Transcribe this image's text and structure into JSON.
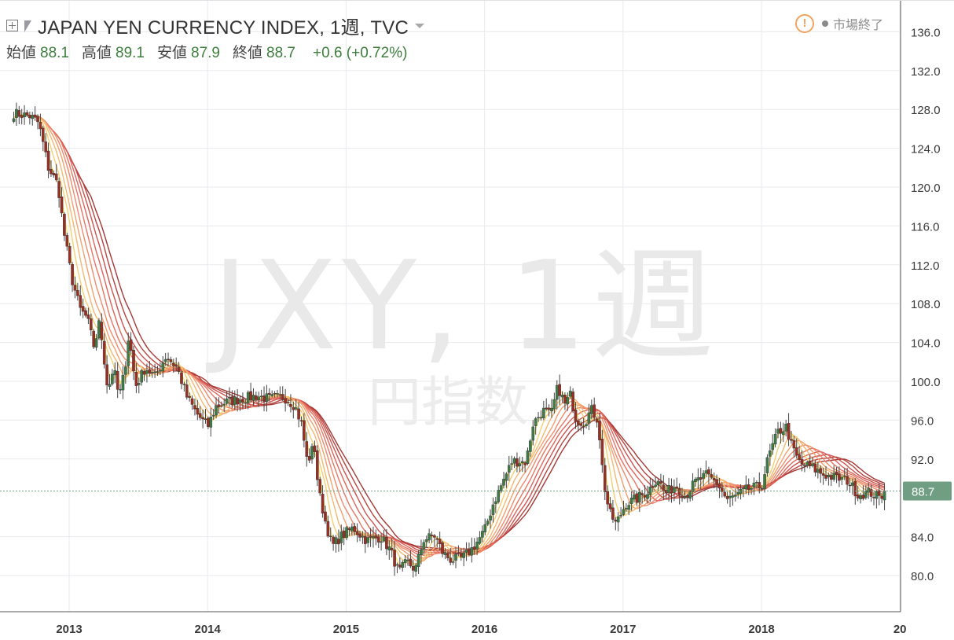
{
  "header": {
    "title": "JAPAN YEN CURRENCY INDEX, 1週, TVC",
    "ohlc": [
      {
        "label": "始値",
        "value": "88.1"
      },
      {
        "label": "高値",
        "value": "89.1"
      },
      {
        "label": "安値",
        "value": "87.9"
      },
      {
        "label": "終値",
        "value": "88.7"
      }
    ],
    "change": "+0.6 (+0.72%)",
    "warning_symbol": "!",
    "market_status": "市場終了"
  },
  "watermark": {
    "symbol": "JXY, 1週",
    "name": "円指数"
  },
  "colors": {
    "up": "#3f7b48",
    "down": "#9a2f25",
    "wick": "#444444",
    "grid": "#e8eaee",
    "axis_text": "#3a3a3a",
    "price_tag": "#6f9e83",
    "ma_ribbon": [
      "#f5e66c",
      "#f4cc6a",
      "#f3b468",
      "#f29c67",
      "#ee8464",
      "#e66f5c",
      "#da5d52",
      "#c94a45",
      "#b23a36",
      "#9e2e2a"
    ]
  },
  "icons": {
    "expand": "plus-square-icon",
    "symbol": "flag-icon",
    "dropdown": "caret-down-icon",
    "warning": "warning-circle-icon",
    "status": "status-dot-icon"
  },
  "chart_data": {
    "type": "candlestick",
    "title": "JAPAN YEN CURRENCY INDEX, 1週, TVC",
    "x_ticks": [
      "2013",
      "2014",
      "2015",
      "2016",
      "2017",
      "2018",
      "20"
    ],
    "y_ticks": [
      "136.0",
      "132.0",
      "128.0",
      "124.0",
      "120.0",
      "116.0",
      "112.0",
      "108.0",
      "104.0",
      "100.0",
      "96.0",
      "92.0",
      "88.7",
      "84.0",
      "80.0"
    ],
    "ylim": [
      76.5,
      138.5
    ],
    "last_price": 88.7,
    "close_path": [
      [
        2012.6,
        127.6
      ],
      [
        2012.72,
        127.3
      ],
      [
        2012.78,
        126.6
      ],
      [
        2012.85,
        122.0
      ],
      [
        2012.92,
        120.2
      ],
      [
        2012.96,
        115.5
      ],
      [
        2013.02,
        110.5
      ],
      [
        2013.08,
        107.4
      ],
      [
        2013.13,
        106.5
      ],
      [
        2013.18,
        103.5
      ],
      [
        2013.22,
        106.2
      ],
      [
        2013.28,
        99.0
      ],
      [
        2013.32,
        101.5
      ],
      [
        2013.36,
        98.3
      ],
      [
        2013.4,
        101.0
      ],
      [
        2013.43,
        104.8
      ],
      [
        2013.48,
        99.5
      ],
      [
        2013.55,
        101.4
      ],
      [
        2013.62,
        100.5
      ],
      [
        2013.7,
        102.6
      ],
      [
        2013.78,
        101.4
      ],
      [
        2013.85,
        98.4
      ],
      [
        2013.92,
        96.7
      ],
      [
        2014.0,
        95.3
      ],
      [
        2014.06,
        97.4
      ],
      [
        2014.14,
        97.9
      ],
      [
        2014.25,
        98.2
      ],
      [
        2014.35,
        98.5
      ],
      [
        2014.45,
        98.2
      ],
      [
        2014.55,
        98.4
      ],
      [
        2014.63,
        97.5
      ],
      [
        2014.68,
        95.5
      ],
      [
        2014.72,
        91.6
      ],
      [
        2014.77,
        93.5
      ],
      [
        2014.8,
        88.8
      ],
      [
        2014.85,
        85.6
      ],
      [
        2014.9,
        83.0
      ],
      [
        2014.96,
        84.0
      ],
      [
        2015.05,
        84.9
      ],
      [
        2015.15,
        83.6
      ],
      [
        2015.25,
        84.0
      ],
      [
        2015.32,
        82.6
      ],
      [
        2015.38,
        80.3
      ],
      [
        2015.44,
        81.4
      ],
      [
        2015.5,
        80.6
      ],
      [
        2015.56,
        83.7
      ],
      [
        2015.64,
        84.1
      ],
      [
        2015.7,
        82.3
      ],
      [
        2015.76,
        81.6
      ],
      [
        2015.84,
        81.8
      ],
      [
        2015.92,
        82.9
      ],
      [
        2016.0,
        84.6
      ],
      [
        2016.06,
        87.3
      ],
      [
        2016.13,
        89.6
      ],
      [
        2016.2,
        91.8
      ],
      [
        2016.3,
        91.7
      ],
      [
        2016.35,
        95.6
      ],
      [
        2016.42,
        97.0
      ],
      [
        2016.48,
        96.5
      ],
      [
        2016.53,
        99.5
      ],
      [
        2016.58,
        97.6
      ],
      [
        2016.62,
        98.6
      ],
      [
        2016.66,
        96.1
      ],
      [
        2016.72,
        95.7
      ],
      [
        2016.77,
        97.1
      ],
      [
        2016.82,
        96.0
      ],
      [
        2016.86,
        89.6
      ],
      [
        2016.9,
        86.5
      ],
      [
        2016.95,
        85.3
      ],
      [
        2017.02,
        87.4
      ],
      [
        2017.1,
        87.9
      ],
      [
        2017.18,
        88.7
      ],
      [
        2017.25,
        90.1
      ],
      [
        2017.3,
        88.4
      ],
      [
        2017.38,
        89.3
      ],
      [
        2017.45,
        88.2
      ],
      [
        2017.52,
        89.6
      ],
      [
        2017.6,
        90.3
      ],
      [
        2017.68,
        89.5
      ],
      [
        2017.75,
        87.8
      ],
      [
        2017.82,
        88.2
      ],
      [
        2017.9,
        88.9
      ],
      [
        2018.0,
        89.2
      ],
      [
        2018.05,
        92.2
      ],
      [
        2018.12,
        94.8
      ],
      [
        2018.18,
        95.3
      ],
      [
        2018.22,
        93.2
      ],
      [
        2018.28,
        91.5
      ],
      [
        2018.35,
        91.2
      ],
      [
        2018.45,
        90.4
      ],
      [
        2018.55,
        90.0
      ],
      [
        2018.62,
        89.8
      ],
      [
        2018.7,
        88.3
      ],
      [
        2018.78,
        88.6
      ],
      [
        2018.85,
        88.0
      ],
      [
        2018.9,
        88.7
      ]
    ],
    "moving_average_ribbon": {
      "count": 10,
      "min_period": 3,
      "max_period": 30
    }
  }
}
